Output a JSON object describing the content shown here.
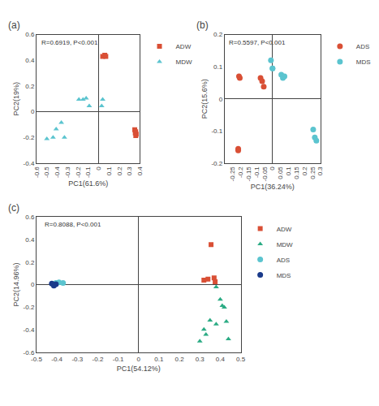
{
  "chart_data": [
    {
      "type": "scatter",
      "title": "(a)",
      "annotations": [
        "R=0.6919, P<0.001"
      ],
      "xlabel": "PC1(61.6%)",
      "ylabel": "PC2(19%)",
      "xlim": [
        -0.6,
        0.4
      ],
      "ylim": [
        -0.4,
        0.6
      ],
      "xticks": [
        -0.6,
        -0.5,
        -0.4,
        -0.3,
        -0.2,
        -0.1,
        0,
        0.1,
        0.2,
        0.3,
        0.4
      ],
      "yticks": [
        -0.4,
        -0.2,
        0,
        0.2,
        0.4,
        0.6
      ],
      "grid": false,
      "legend": "right",
      "series": [
        {
          "name": "ADW",
          "color": "#D94F35",
          "marker": "square",
          "x": [
            0.04,
            0.06,
            0.07,
            0.35,
            0.36,
            0.355,
            0.365,
            0.36
          ],
          "values": [
            0.43,
            0.44,
            0.43,
            -0.14,
            -0.155,
            -0.165,
            -0.175,
            -0.185
          ]
        },
        {
          "name": "MDW",
          "color": "#5BC4CF",
          "marker": "triangle-up",
          "x": [
            -0.5,
            -0.44,
            -0.41,
            -0.36,
            -0.33,
            -0.19,
            -0.15,
            -0.12,
            -0.09,
            0.03,
            0.04
          ],
          "values": [
            -0.21,
            -0.2,
            -0.135,
            -0.085,
            -0.2,
            0.095,
            0.095,
            0.105,
            0.045,
            0.045,
            0.095
          ]
        }
      ]
    },
    {
      "type": "scatter",
      "title": "(b)",
      "annotations": [
        "R=0.5597, P<0.001"
      ],
      "xlabel": "PC1(36.24%)",
      "ylabel": "PC2(15.6%)",
      "xlim": [
        -0.3,
        0.3
      ],
      "ylim": [
        -0.2,
        0.2
      ],
      "xticks": [
        -0.25,
        -0.2,
        -0.15,
        -0.1,
        -0.05,
        0,
        0.05,
        0.1,
        0.15,
        0.2,
        0.25,
        0.3
      ],
      "yticks": [
        -0.2,
        -0.1,
        0,
        0.1,
        0.2
      ],
      "grid": false,
      "legend": "right",
      "series": [
        {
          "name": "ADS",
          "color": "#D94F35",
          "marker": "circle",
          "x": [
            -0.215,
            -0.215,
            -0.205,
            -0.21,
            -0.075,
            -0.065,
            -0.055
          ],
          "values": [
            -0.155,
            -0.16,
            0.065,
            0.07,
            0.065,
            0.055,
            0.038
          ]
        },
        {
          "name": "MDS",
          "color": "#5BC4CF",
          "marker": "circle",
          "x": [
            -0.01,
            0.0,
            0.0,
            0.055,
            0.065,
            0.075,
            0.255,
            0.265,
            0.275
          ],
          "values": [
            0.12,
            0.095,
            0.095,
            0.075,
            0.065,
            0.07,
            -0.095,
            -0.12,
            -0.13
          ]
        }
      ]
    },
    {
      "type": "scatter",
      "title": "(c)",
      "annotations": [
        "R=0.8088, P<0.001"
      ],
      "xlabel": "PC1(54.12%)",
      "ylabel": "PC2(14.96%)",
      "xlim": [
        -0.5,
        0.5
      ],
      "ylim": [
        -0.6,
        0.6
      ],
      "xticks": [
        -0.5,
        -0.4,
        -0.3,
        -0.2,
        -0.1,
        0,
        0.1,
        0.2,
        0.3,
        0.4,
        0.5
      ],
      "yticks": [
        -0.6,
        -0.4,
        -0.2,
        0,
        0.2,
        0.4,
        0.6
      ],
      "grid": false,
      "legend": "right",
      "series": [
        {
          "name": "ADW",
          "color": "#D94F35",
          "marker": "square",
          "x": [
            0.32,
            0.34,
            0.355,
            0.37,
            0.375
          ],
          "values": [
            0.04,
            0.05,
            0.355,
            0.06,
            0.025
          ]
        },
        {
          "name": "MDW",
          "color": "#2BAB84",
          "marker": "triangle-up",
          "x": [
            0.38,
            0.4,
            0.41,
            0.42,
            0.43,
            0.44,
            0.35,
            0.33,
            0.32,
            0.3,
            0.38
          ],
          "values": [
            -0.02,
            -0.13,
            -0.185,
            -0.2,
            -0.325,
            -0.48,
            -0.315,
            -0.44,
            -0.395,
            -0.5,
            -0.35
          ]
        },
        {
          "name": "ADS",
          "color": "#5BC4CF",
          "marker": "circle",
          "x": [
            -0.37,
            -0.39,
            -0.405
          ],
          "values": [
            0.015,
            0.02,
            0.015
          ]
        },
        {
          "name": "MDS",
          "color": "#1A3A8A",
          "marker": "circle",
          "x": [
            -0.405,
            -0.415,
            -0.425
          ],
          "values": [
            0.005,
            -0.008,
            0.01
          ]
        }
      ]
    }
  ]
}
